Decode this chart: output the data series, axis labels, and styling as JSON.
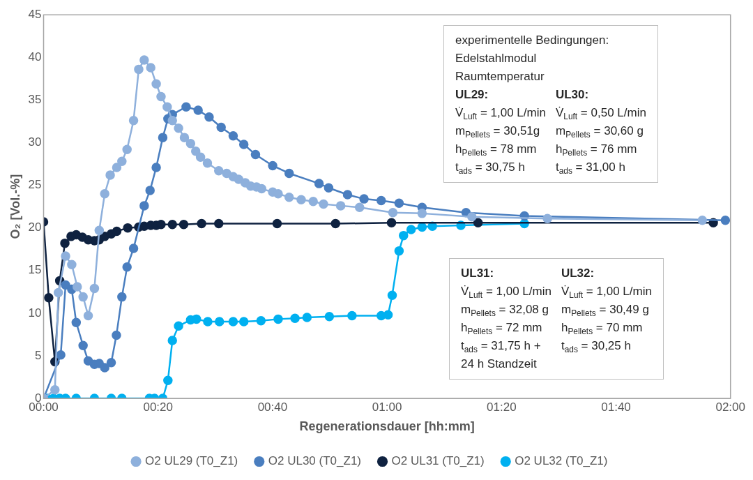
{
  "chart_data": {
    "type": "line",
    "xlabel": "Regenerationsdauer [hh:mm]",
    "ylabel": "O₂ [Vol.-%]",
    "xlim": [
      0,
      2
    ],
    "xticks": [
      {
        "value": 0,
        "label": "00:00"
      },
      {
        "value": 0.3333,
        "label": "00:20"
      },
      {
        "value": 0.6667,
        "label": "00:40"
      },
      {
        "value": 1,
        "label": "01:00"
      },
      {
        "value": 1.3333,
        "label": "01:20"
      },
      {
        "value": 1.6667,
        "label": "01:40"
      },
      {
        "value": 2,
        "label": "02:00"
      }
    ],
    "ylim": [
      0,
      45
    ],
    "yticks": [
      0,
      5,
      10,
      15,
      20,
      25,
      30,
      35,
      40,
      45
    ],
    "grid": false,
    "legend": "bottom",
    "marker": "circle",
    "line_style": "solid",
    "series": [
      {
        "name": "O2 UL29 (T0_Z1)",
        "color": "#8eb0dc",
        "x": [
          0,
          0.033,
          0.043,
          0.064,
          0.082,
          0.098,
          0.115,
          0.13,
          0.148,
          0.162,
          0.178,
          0.194,
          0.213,
          0.228,
          0.243,
          0.262,
          0.277,
          0.293,
          0.312,
          0.328,
          0.342,
          0.36,
          0.375,
          0.393,
          0.41,
          0.428,
          0.443,
          0.457,
          0.477,
          0.51,
          0.533,
          0.552,
          0.568,
          0.587,
          0.603,
          0.62,
          0.635,
          0.667,
          0.683,
          0.715,
          0.75,
          0.785,
          0.815,
          0.865,
          0.92,
          1.017,
          1.102,
          1.247,
          1.467,
          1.918
        ],
        "values": [
          0,
          1.0,
          12.4,
          16.7,
          15.7,
          13.1,
          11.9,
          9.7,
          12.9,
          19.7,
          24.0,
          26.2,
          27.1,
          27.8,
          29.2,
          32.6,
          38.6,
          39.7,
          38.8,
          36.9,
          35.4,
          34.2,
          32.6,
          31.7,
          30.6,
          29.9,
          29.0,
          28.3,
          27.6,
          26.7,
          26.4,
          26.0,
          25.7,
          25.3,
          24.9,
          24.8,
          24.6,
          24.2,
          24.0,
          23.6,
          23.3,
          23.1,
          22.8,
          22.6,
          22.4,
          21.8,
          21.7,
          21.3,
          21.1,
          20.9
        ]
      },
      {
        "name": "O2 UL30 (T0_Z1)",
        "color": "#4a7ebf",
        "x": [
          0,
          0.05,
          0.064,
          0.082,
          0.095,
          0.115,
          0.13,
          0.148,
          0.162,
          0.178,
          0.197,
          0.212,
          0.228,
          0.243,
          0.262,
          0.293,
          0.31,
          0.328,
          0.347,
          0.362,
          0.375,
          0.415,
          0.45,
          0.482,
          0.517,
          0.552,
          0.583,
          0.617,
          0.667,
          0.715,
          0.802,
          0.83,
          0.885,
          0.933,
          0.983,
          1.035,
          1.102,
          1.23,
          1.4,
          1.985
        ],
        "values": [
          0,
          5.1,
          13.3,
          12.8,
          8.9,
          6.2,
          4.4,
          4.0,
          4.1,
          3.6,
          4.2,
          7.4,
          11.9,
          15.4,
          17.6,
          22.6,
          24.4,
          27.1,
          30.6,
          32.8,
          33.3,
          34.2,
          33.8,
          33.0,
          31.8,
          30.8,
          29.8,
          28.6,
          27.3,
          26.4,
          25.2,
          24.7,
          23.9,
          23.4,
          23.2,
          22.9,
          22.4,
          21.8,
          21.4,
          20.9
        ]
      },
      {
        "name": "O2 UL31 (T0_Z1)",
        "color": "#0f2240",
        "x": [
          0,
          0.015,
          0.033,
          0.047,
          0.062,
          0.08,
          0.095,
          0.113,
          0.13,
          0.148,
          0.162,
          0.178,
          0.197,
          0.213,
          0.245,
          0.277,
          0.293,
          0.312,
          0.328,
          0.342,
          0.375,
          0.408,
          0.46,
          0.51,
          0.68,
          0.85,
          1.013,
          1.265,
          1.95
        ],
        "values": [
          20.7,
          11.8,
          4.3,
          13.8,
          18.2,
          19.0,
          19.2,
          18.9,
          18.6,
          18.5,
          18.6,
          19.0,
          19.3,
          19.6,
          20.0,
          20.1,
          20.2,
          20.3,
          20.3,
          20.4,
          20.4,
          20.4,
          20.5,
          20.5,
          20.5,
          20.5,
          20.6,
          20.6,
          20.6
        ]
      },
      {
        "name": "O2 UL32 (T0_Z1)",
        "color": "#00b0f0",
        "x": [
          0,
          0.012,
          0.029,
          0.047,
          0.064,
          0.095,
          0.148,
          0.197,
          0.228,
          0.308,
          0.323,
          0.347,
          0.362,
          0.375,
          0.393,
          0.428,
          0.445,
          0.478,
          0.512,
          0.552,
          0.583,
          0.633,
          0.683,
          0.732,
          0.767,
          0.832,
          0.898,
          0.983,
          1.003,
          1.015,
          1.035,
          1.048,
          1.07,
          1.102,
          1.132,
          1.215,
          1.4
        ],
        "values": [
          0,
          0,
          0,
          0,
          0,
          0,
          0,
          0,
          0,
          0,
          0,
          0,
          2.1,
          6.8,
          8.5,
          9.2,
          9.3,
          9.0,
          9.0,
          9.0,
          9.0,
          9.1,
          9.3,
          9.4,
          9.5,
          9.6,
          9.7,
          9.7,
          9.8,
          12.1,
          17.3,
          19.1,
          19.8,
          20.1,
          20.2,
          20.3,
          20.5
        ]
      }
    ],
    "annotations": [
      "experimentelle Bedingungen:\nEdelstahlmodul\nRaumtemperatur",
      "UL29:\nV̇$_{Luft}$ = 1,00 L/min\nm$_{Pellets}$ = 30,51g\nh$_{Pellets}$ = 78 mm\nt$_{ads}$ = 30,75 h",
      "UL30:\nV̇$_{Luft}$ = 0,50 L/min\nm$_{Pellets}$ = 30,60 g\nh$_{Pellets}$ = 76 mm\nt$_{ads}$ = 31,00 h",
      "UL31:\nV̇$_{Luft}$ = 1,00 L/min\nm$_{Pellets}$ = 32,08 g\nh$_{Pellets}$ = 72 mm\nt$_{ads}$ = 31,75 h +\n24 h Standzeit",
      "UL32:\nV̇$_{Luft}$ = 1,00 L/min\nm$_{Pellets}$ = 30,49 g\nh$_{Pellets}$ = 70 mm\nt$_{ads}$ = 30,25 h"
    ]
  }
}
